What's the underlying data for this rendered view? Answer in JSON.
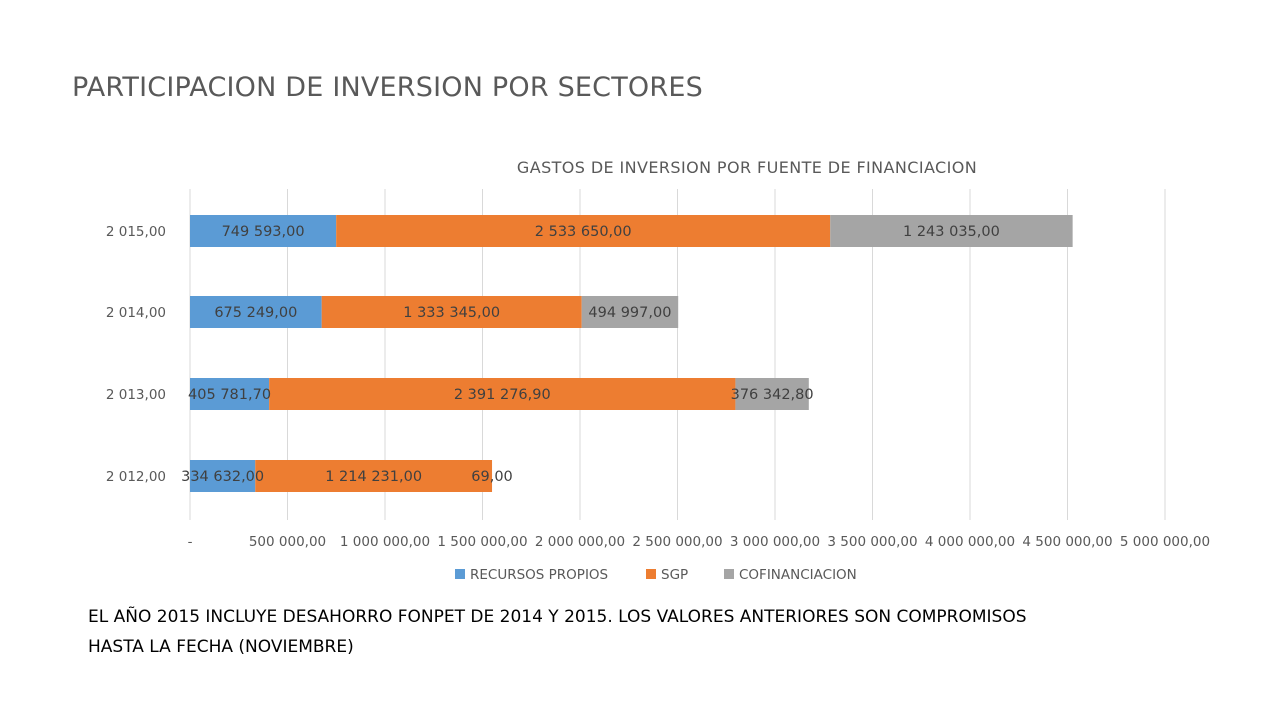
{
  "slide": {
    "title": "PARTICIPACION DE INVERSION POR SECTORES",
    "footnote_line1": "EL AÑO 2015 INCLUYE DESAHORRO FONPET DE 2014 Y 2015. LOS VALORES ANTERIORES SON COMPROMISOS",
    "footnote_line2": "HASTA LA FECHA (NOVIEMBRE)"
  },
  "chart_data": {
    "type": "bar",
    "orientation": "horizontal",
    "stacked": true,
    "title": "GASTOS DE INVERSION POR FUENTE DE FINANCIACION",
    "categories": [
      "2 012,00",
      "2 013,00",
      "2 014,00",
      "2 015,00"
    ],
    "series": [
      {
        "name": "RECURSOS PROPIOS",
        "color": "#5B9BD5",
        "values": [
          334632.0,
          405781.7,
          675249.0,
          749593.0
        ],
        "labels": [
          "334 632,00",
          "405 781,70",
          "675 249,00",
          "749 593,00"
        ]
      },
      {
        "name": "SGP",
        "color": "#ED7D31",
        "values": [
          1214231.0,
          2391276.9,
          1333345.0,
          2533650.0
        ],
        "labels": [
          "1 214 231,00",
          "2 391 276,90",
          "1 333 345,00",
          "2 533 650,00"
        ]
      },
      {
        "name": "COFINANCIACION",
        "color": "#A5A5A5",
        "values": [
          69.0,
          376342.8,
          494997.0,
          1243035.0
        ],
        "labels": [
          "69,00",
          "376 342,80",
          "494 997,00",
          "1 243 035,00"
        ]
      }
    ],
    "xlim": [
      0,
      5000000
    ],
    "x_ticks": [
      0,
      500000,
      1000000,
      1500000,
      2000000,
      2500000,
      3000000,
      3500000,
      4000000,
      4500000,
      5000000
    ],
    "x_tick_labels": [
      "-",
      "500 000,00",
      "1 000 000,00",
      "1 500 000,00",
      "2 000 000,00",
      "2 500 000,00",
      "3 000 000,00",
      "3 500 000,00",
      "4 000 000,00",
      "4 500 000,00",
      "5 000 000,00"
    ],
    "grid": true,
    "legend_position": "bottom"
  }
}
